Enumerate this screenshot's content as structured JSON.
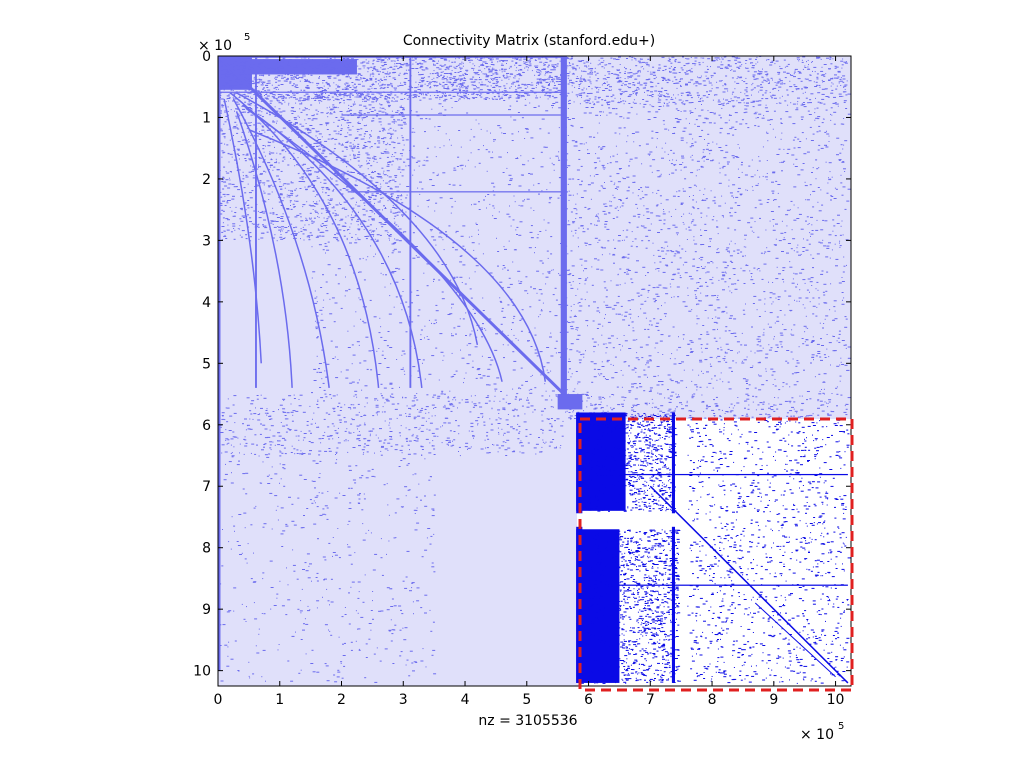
{
  "chart_data": {
    "type": "heatmap",
    "title": "Connectivity Matrix (stanford.edu+)",
    "xlabel": "nz = 3105536",
    "ylabel": "",
    "x_exponent_label": "× 10",
    "y_exponent_label": "× 10",
    "exponent": "5",
    "xlim": [
      0,
      1025000
    ],
    "ylim": [
      0,
      1025000
    ],
    "y_reversed": true,
    "x_ticks": [
      "0",
      "1",
      "2",
      "3",
      "4",
      "5",
      "6",
      "7",
      "8",
      "9",
      "10"
    ],
    "y_ticks": [
      "0",
      "1",
      "2",
      "3",
      "4",
      "5",
      "6",
      "7",
      "8",
      "9",
      "10"
    ],
    "nonzeros": 3105536,
    "highlight_region": {
      "x_range": [
        585000,
        1025000
      ],
      "y_range": [
        580000,
        1025000
      ],
      "style": "dashed",
      "color": "#e02020"
    },
    "diagonal_breaks": [
      0,
      550000,
      580000,
      1025000
    ],
    "colors": {
      "faded_background": "#e0e0fa",
      "faded_marks": "#6b6bee",
      "highlight_background": "#ffffff",
      "highlight_marks": "#0a0ae6",
      "highlight_border": "#e02020"
    }
  }
}
